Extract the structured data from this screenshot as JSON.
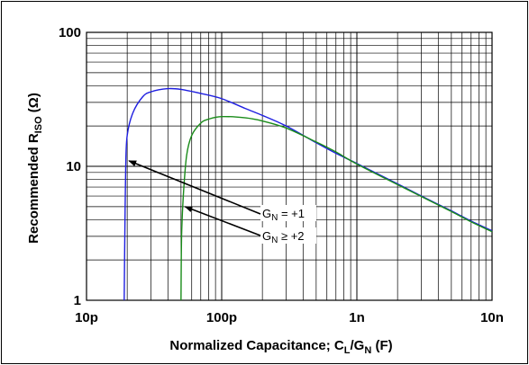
{
  "chart_data": {
    "type": "line",
    "title": "",
    "xlabel": {
      "main": "Normalized Capacitance; C",
      "sub1": "L",
      "mid": "/G",
      "sub2": "N",
      "tail": " (F)"
    },
    "ylabel": {
      "main": "Recommended R",
      "sub": "ISO",
      "tail": " (Ω)"
    },
    "x_scale": "log",
    "y_scale": "log",
    "xlim": [
      1e-11,
      1e-08
    ],
    "ylim": [
      1,
      100
    ],
    "grid": true,
    "x_ticks": [
      {
        "value": 1e-11,
        "label": "10p"
      },
      {
        "value": 1e-10,
        "label": "100p"
      },
      {
        "value": 1e-09,
        "label": "1n"
      },
      {
        "value": 1e-08,
        "label": "10n"
      }
    ],
    "y_ticks": [
      {
        "value": 1,
        "label": "1"
      },
      {
        "value": 10,
        "label": "10"
      },
      {
        "value": 100,
        "label": "100"
      }
    ],
    "series": [
      {
        "id": "gn1",
        "color": "#1f1fe0",
        "x": [
          1.9e-11,
          1.92e-11,
          1.95e-11,
          2e-11,
          2.2e-11,
          2.6e-11,
          3e-11,
          4e-11,
          5e-11,
          7e-11,
          1e-10,
          1.5e-10,
          2e-10,
          3e-10,
          5e-10,
          7e-10,
          1e-09,
          2e-09,
          3e-09,
          5e-09,
          7e-09,
          1e-08
        ],
        "y": [
          1,
          3,
          10,
          17,
          25,
          33,
          36,
          38,
          37.5,
          35,
          32,
          27,
          24,
          20,
          15,
          12.5,
          10.5,
          7.4,
          6.0,
          4.65,
          3.9,
          3.3
        ]
      },
      {
        "id": "gn2",
        "color": "#1a8c1a",
        "x": [
          5e-11,
          5.05e-11,
          5.2e-11,
          5.5e-11,
          6e-11,
          7e-11,
          8e-11,
          1e-10,
          1.5e-10,
          2e-10,
          3e-10,
          5e-10,
          7e-10,
          1e-09,
          2e-09,
          3e-09,
          5e-09,
          7e-09,
          1e-08
        ],
        "y": [
          1,
          3,
          6,
          12,
          17,
          21,
          22.5,
          23.5,
          23,
          21.8,
          19.3,
          15.2,
          12.8,
          10.4,
          7.3,
          5.95,
          4.6,
          3.85,
          3.25
        ]
      }
    ],
    "annotations": [
      {
        "base": "G",
        "sub": "N",
        "rest": " = +1",
        "arrow_to_x": 2e-11,
        "arrow_to_y": 11
      },
      {
        "base": "G",
        "sub": "N",
        "rest": " ≥ +2",
        "arrow_to_x": 5.2e-11,
        "arrow_to_y": 5
      }
    ]
  }
}
